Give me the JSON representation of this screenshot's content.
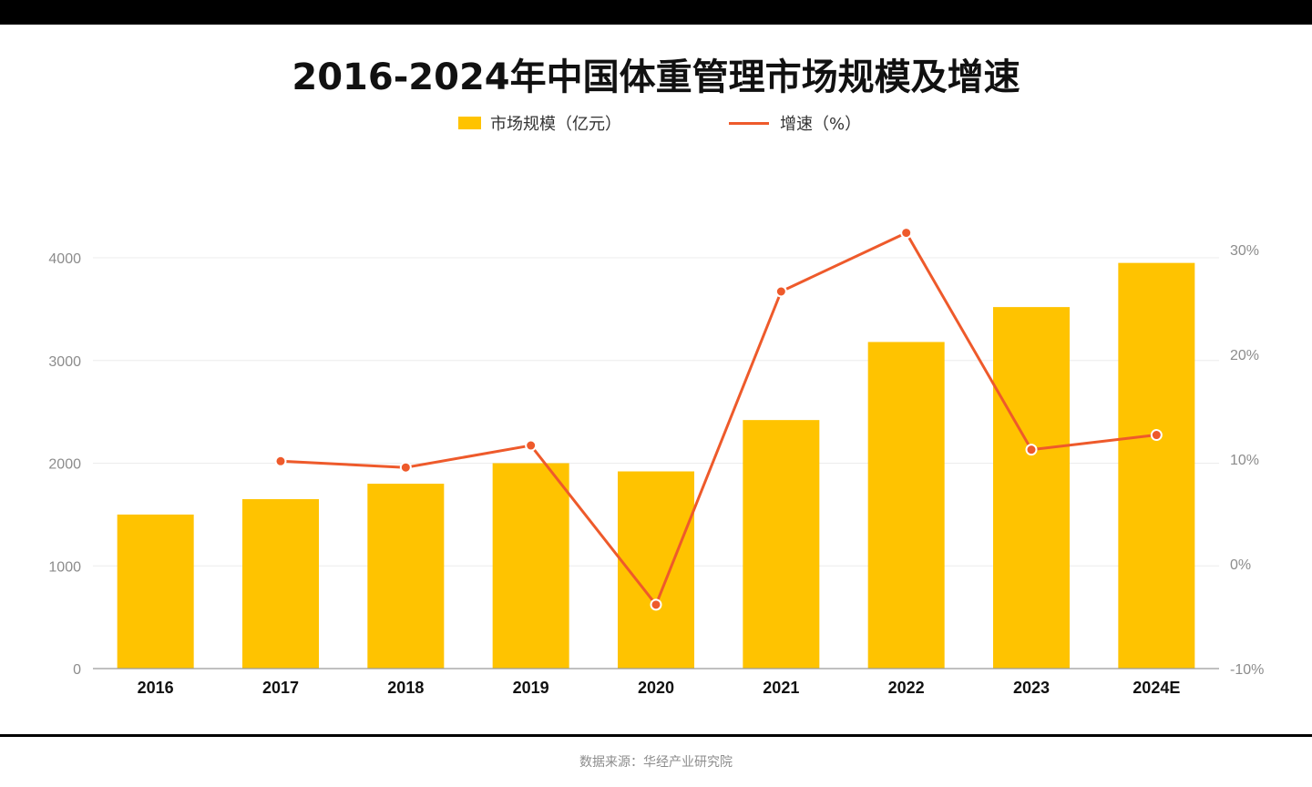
{
  "title": "2016-2024年中国体重管理市场规模及增速",
  "source": "数据来源：华经产业研究院",
  "colors": {
    "bar": "#FFC300",
    "line": "#EE5A2B",
    "grid": "#ececec",
    "axis_text": "#8c8c8c"
  },
  "chart_data": {
    "type": "bar",
    "title": "2016-2024年中国体重管理市场规模及增速",
    "categories": [
      "2016",
      "2017",
      "2018",
      "2019",
      "2020",
      "2021",
      "2022",
      "2023",
      "2024E"
    ],
    "series": [
      {
        "name": "市场规模（亿元）",
        "type": "bar",
        "axis": "left",
        "values": [
          1500,
          1650,
          1800,
          2000,
          1920,
          2420,
          3180,
          3520,
          3950
        ]
      },
      {
        "name": "增速（%）",
        "type": "line",
        "axis": "right",
        "values": [
          null,
          9.8,
          9.2,
          11.3,
          -3.9,
          26.0,
          31.6,
          10.9,
          12.3
        ]
      }
    ],
    "left_axis": {
      "ylim": [
        0,
        4000
      ],
      "ticks": [
        "0",
        "1000",
        "2000",
        "3000",
        "4000"
      ]
    },
    "right_axis": {
      "ylim": [
        -10,
        30
      ],
      "ticks": [
        "-10%",
        "0%",
        "10%",
        "20%",
        "30%"
      ]
    },
    "grid": true,
    "legend_position": "top-center"
  }
}
